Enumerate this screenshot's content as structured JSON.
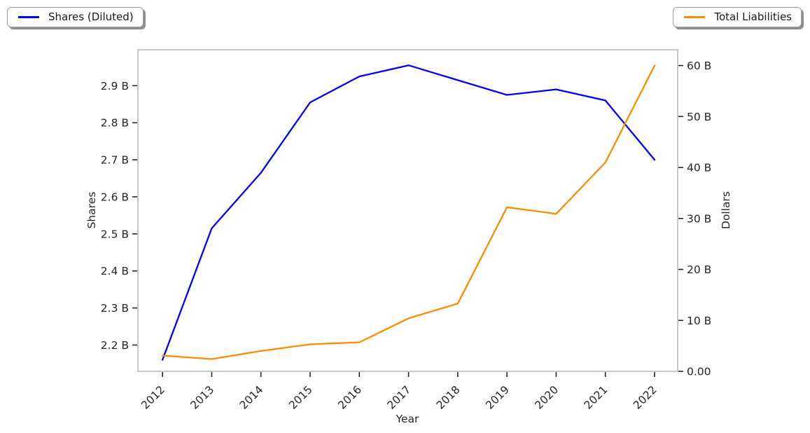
{
  "chart_data": {
    "type": "line",
    "title": "",
    "xlabel": "Year",
    "x": [
      2012,
      2013,
      2014,
      2015,
      2016,
      2017,
      2018,
      2019,
      2020,
      2021,
      2022
    ],
    "x_tick_labels": [
      "2012",
      "2013",
      "2014",
      "2015",
      "2016",
      "2017",
      "2018",
      "2019",
      "2020",
      "2021",
      "2022"
    ],
    "xlim": [
      2011.5,
      2022.47
    ],
    "grid": false,
    "series": [
      {
        "name": "Shares (Diluted)",
        "color": "#0000ff",
        "axis": "left",
        "values": [
          2.16,
          2.515,
          2.665,
          2.855,
          2.925,
          2.955,
          2.915,
          2.875,
          2.89,
          2.86,
          2.7
        ]
      },
      {
        "name": "Total Liabilities",
        "color": "#ff8c00",
        "axis": "right",
        "values": [
          3.1,
          2.4,
          4.0,
          5.3,
          5.7,
          10.4,
          13.3,
          32.2,
          30.9,
          41.0,
          60.0
        ]
      }
    ],
    "left_axis": {
      "label": "Shares",
      "unit": "B",
      "ylim": [
        2.129,
        2.997
      ],
      "tick_values": [
        2.2,
        2.3,
        2.4,
        2.5,
        2.6,
        2.7,
        2.8,
        2.9
      ],
      "tick_labels": [
        "2.2 B",
        "2.3 B",
        "2.4 B",
        "2.5 B",
        "2.6 B",
        "2.7 B",
        "2.8 B",
        "2.9 B"
      ]
    },
    "right_axis": {
      "label": "Dollars",
      "unit": "B",
      "ylim": [
        0,
        63.1
      ],
      "tick_values": [
        0,
        10,
        20,
        30,
        40,
        50,
        60
      ],
      "tick_labels": [
        "0.00",
        "10 B",
        "20 B",
        "30 B",
        "40 B",
        "50 B",
        "60 B"
      ]
    },
    "legend_positions": [
      "upper-left",
      "upper-right"
    ]
  },
  "colors": {
    "background": "#ffffff",
    "spine": "#c9c9c9",
    "tick": "#262626",
    "tick_label": "#262626",
    "series_blue": "#0000ff",
    "series_orange": "#ff8c00"
  }
}
